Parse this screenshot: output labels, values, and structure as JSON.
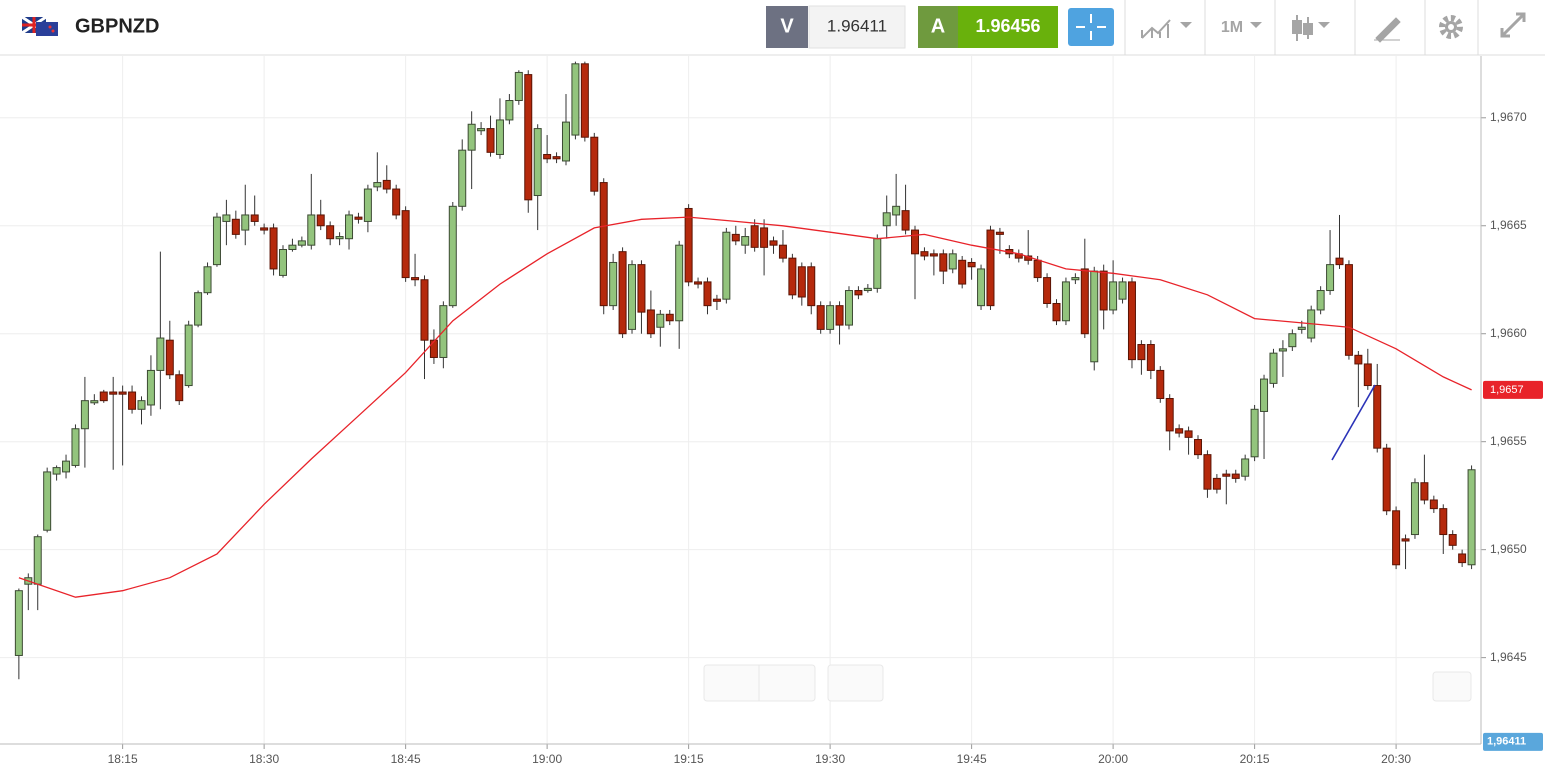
{
  "toolbar": {
    "symbol": "GBPNZD",
    "sell_label": "V",
    "sell": 1.96411,
    "buy_label": "A",
    "buy": 1.96456,
    "timeframe": "1M"
  },
  "chart_data": {
    "type": "candlestick",
    "x": [
      "18:04",
      "18:05",
      "18:06",
      "18:07",
      "18:08",
      "18:09",
      "18:10",
      "18:11",
      "18:12",
      "18:13",
      "18:14",
      "18:15",
      "18:16",
      "18:17",
      "18:18",
      "18:19",
      "18:20",
      "18:21",
      "18:22",
      "18:23",
      "18:24",
      "18:25",
      "18:26",
      "18:27",
      "18:28",
      "18:29",
      "18:30",
      "18:31",
      "18:32",
      "18:33",
      "18:34",
      "18:35",
      "18:36",
      "18:37",
      "18:38",
      "18:39",
      "18:40",
      "18:41",
      "18:42",
      "18:43",
      "18:44",
      "18:45",
      "18:46",
      "18:47",
      "18:48",
      "18:49",
      "18:50",
      "18:51",
      "18:52",
      "18:53",
      "18:54",
      "18:55",
      "18:56",
      "18:57",
      "18:58",
      "18:59",
      "19:00",
      "19:01",
      "19:02",
      "19:03",
      "19:04",
      "19:05",
      "19:06",
      "19:07",
      "19:08",
      "19:09",
      "19:10",
      "19:11",
      "19:12",
      "19:13",
      "19:14",
      "19:15",
      "19:16",
      "19:17",
      "19:18",
      "19:19",
      "19:20",
      "19:21",
      "19:22",
      "19:23",
      "19:24",
      "19:25",
      "19:26",
      "19:27",
      "19:28",
      "19:29",
      "19:30",
      "19:31",
      "19:32",
      "19:33",
      "19:34",
      "19:35",
      "19:36",
      "19:37",
      "19:38",
      "19:39",
      "19:40",
      "19:41",
      "19:42",
      "19:43",
      "19:44",
      "19:45",
      "19:46",
      "19:47",
      "19:48",
      "19:49",
      "19:50",
      "19:51",
      "19:52",
      "19:53",
      "19:54",
      "19:55",
      "19:56",
      "19:57",
      "19:58",
      "19:59",
      "20:00",
      "20:01",
      "20:02",
      "20:03",
      "20:04",
      "20:05",
      "20:06",
      "20:07",
      "20:08",
      "20:09",
      "20:10",
      "20:11",
      "20:12",
      "20:13",
      "20:14",
      "20:15",
      "20:16",
      "20:17",
      "20:18",
      "20:19",
      "20:20",
      "20:21",
      "20:22",
      "20:23",
      "20:24",
      "20:25",
      "20:26",
      "20:27",
      "20:28",
      "20:29",
      "20:30",
      "20:31",
      "20:32",
      "20:33",
      "20:34",
      "20:35",
      "20:36",
      "20:37",
      "20:38"
    ],
    "open": [
      1.96451,
      1.96484,
      1.96484,
      1.96509,
      1.96535,
      1.96536,
      1.96539,
      1.96556,
      1.96568,
      1.96573,
      1.96573,
      1.96573,
      1.96573,
      1.96565,
      1.96567,
      1.96583,
      1.96597,
      1.96581,
      1.96576,
      1.96604,
      1.96619,
      1.96632,
      1.96652,
      1.96653,
      1.96648,
      1.96655,
      1.96649,
      1.96649,
      1.96627,
      1.96639,
      1.96641,
      1.96641,
      1.96655,
      1.9665,
      1.96644,
      1.96644,
      1.96654,
      1.96652,
      1.96668,
      1.96671,
      1.96667,
      1.96657,
      1.96626,
      1.96625,
      1.96597,
      1.96589,
      1.96613,
      1.96659,
      1.96685,
      1.96694,
      1.96695,
      1.96683,
      1.96699,
      1.96708,
      1.9672,
      1.96664,
      1.96683,
      1.96682,
      1.9668,
      1.96692,
      1.96725,
      1.96691,
      1.9667,
      1.96613,
      1.96638,
      1.96602,
      1.96632,
      1.96611,
      1.96603,
      1.96609,
      1.96606,
      1.96658,
      1.96624,
      1.96624,
      1.96616,
      1.96616,
      1.96646,
      1.96641,
      1.9665,
      1.96649,
      1.96643,
      1.96641,
      1.96635,
      1.96631,
      1.96631,
      1.96613,
      1.96602,
      1.96613,
      1.96604,
      1.9662,
      1.9662,
      1.96621,
      1.9665,
      1.96655,
      1.96657,
      1.96648,
      1.96638,
      1.96637,
      1.96637,
      1.9663,
      1.96634,
      1.96633,
      1.96613,
      1.96648,
      1.96647,
      1.96639,
      1.96637,
      1.96636,
      1.96634,
      1.96626,
      1.96614,
      1.96606,
      1.96625,
      1.9663,
      1.96587,
      1.96629,
      1.96611,
      1.96616,
      1.96624,
      1.96595,
      1.96595,
      1.96583,
      1.9657,
      1.96556,
      1.96555,
      1.96551,
      1.96544,
      1.96533,
      1.96535,
      1.96535,
      1.96534,
      1.96543,
      1.96564,
      1.96577,
      1.96592,
      1.96594,
      1.96602,
      1.96598,
      1.96611,
      1.9662,
      1.96635,
      1.96632,
      1.9659,
      1.96586,
      1.96576,
      1.96547,
      1.96518,
      1.96505,
      1.96507,
      1.96531,
      1.96523,
      1.96519,
      1.96507,
      1.96498,
      1.96493
    ],
    "high": [
      1.96482,
      1.96489,
      1.96507,
      1.96538,
      1.96539,
      1.96544,
      1.96558,
      1.9658,
      1.96572,
      1.96574,
      1.9658,
      1.96576,
      1.96576,
      1.96571,
      1.9659,
      1.96638,
      1.96606,
      1.96583,
      1.96606,
      1.9662,
      1.96633,
      1.96656,
      1.96662,
      1.96657,
      1.96669,
      1.96664,
      1.96651,
      1.96651,
      1.96641,
      1.96644,
      1.96645,
      1.96674,
      1.96662,
      1.96652,
      1.96647,
      1.96657,
      1.96656,
      1.96669,
      1.96684,
      1.96678,
      1.96669,
      1.96659,
      1.96637,
      1.96627,
      1.96602,
      1.96615,
      1.96661,
      1.9669,
      1.96703,
      1.96698,
      1.96701,
      1.96709,
      1.96711,
      1.96722,
      1.96722,
      1.96697,
      1.96692,
      1.96684,
      1.96711,
      1.96726,
      1.96726,
      1.96693,
      1.96672,
      1.96637,
      1.9664,
      1.96634,
      1.96634,
      1.9662,
      1.96611,
      1.96611,
      1.96643,
      1.9666,
      1.96626,
      1.96626,
      1.96618,
      1.96649,
      1.9665,
      1.96649,
      1.96653,
      1.96653,
      1.96645,
      1.96648,
      1.96637,
      1.96633,
      1.96633,
      1.96615,
      1.96615,
      1.96615,
      1.96622,
      1.96622,
      1.96623,
      1.96646,
      1.96664,
      1.96674,
      1.96669,
      1.9665,
      1.9664,
      1.96639,
      1.96639,
      1.96639,
      1.96636,
      1.96635,
      1.96632,
      1.9665,
      1.96649,
      1.96641,
      1.96639,
      1.96648,
      1.96636,
      1.96628,
      1.96616,
      1.96626,
      1.96628,
      1.96644,
      1.96631,
      1.96632,
      1.96634,
      1.96626,
      1.96626,
      1.96597,
      1.96597,
      1.96585,
      1.96572,
      1.96558,
      1.96557,
      1.96553,
      1.96546,
      1.96535,
      1.96537,
      1.96537,
      1.96544,
      1.96567,
      1.96581,
      1.96593,
      1.96597,
      1.96602,
      1.96606,
      1.96613,
      1.96622,
      1.96648,
      1.96655,
      1.96634,
      1.96592,
      1.96593,
      1.96586,
      1.96549,
      1.9652,
      1.96507,
      1.96533,
      1.96544,
      1.96525,
      1.96521,
      1.96509,
      1.965,
      1.96539
    ],
    "low": [
      1.9644,
      1.96472,
      1.96472,
      1.96508,
      1.96532,
      1.96533,
      1.96538,
      1.96538,
      1.96567,
      1.96568,
      1.96537,
      1.96539,
      1.96563,
      1.96558,
      1.96562,
      1.96565,
      1.96579,
      1.96567,
      1.96575,
      1.96603,
      1.96618,
      1.96631,
      1.96641,
      1.96644,
      1.96641,
      1.9665,
      1.96646,
      1.96627,
      1.96626,
      1.96638,
      1.9664,
      1.96639,
      1.96648,
      1.96641,
      1.96641,
      1.96639,
      1.96651,
      1.96647,
      1.96666,
      1.96665,
      1.96653,
      1.96624,
      1.96622,
      1.96579,
      1.96586,
      1.96584,
      1.96612,
      1.96657,
      1.96667,
      1.96692,
      1.96682,
      1.96681,
      1.96697,
      1.96706,
      1.96656,
      1.96648,
      1.96679,
      1.96679,
      1.96678,
      1.9669,
      1.96689,
      1.96664,
      1.96609,
      1.96611,
      1.96598,
      1.966,
      1.966,
      1.96598,
      1.96594,
      1.96604,
      1.96593,
      1.96622,
      1.96621,
      1.96609,
      1.96611,
      1.96614,
      1.96641,
      1.96637,
      1.96638,
      1.96627,
      1.96637,
      1.96633,
      1.96616,
      1.96613,
      1.96609,
      1.966,
      1.966,
      1.96595,
      1.96602,
      1.96616,
      1.96619,
      1.96619,
      1.96644,
      1.9665,
      1.96646,
      1.96616,
      1.96634,
      1.96627,
      1.96623,
      1.96628,
      1.96621,
      1.96625,
      1.96611,
      1.96611,
      1.96637,
      1.96635,
      1.96633,
      1.96632,
      1.96624,
      1.96612,
      1.96604,
      1.96604,
      1.96623,
      1.96598,
      1.96583,
      1.96602,
      1.96609,
      1.96614,
      1.96584,
      1.96581,
      1.96579,
      1.96568,
      1.96546,
      1.96552,
      1.96544,
      1.96542,
      1.96524,
      1.96526,
      1.96521,
      1.96531,
      1.96532,
      1.96541,
      1.96542,
      1.96575,
      1.9658,
      1.96592,
      1.966,
      1.96596,
      1.96609,
      1.96618,
      1.9663,
      1.96588,
      1.96566,
      1.96574,
      1.96545,
      1.96516,
      1.96491,
      1.96491,
      1.96505,
      1.96521,
      1.96517,
      1.96498,
      1.965,
      1.96492,
      1.96491
    ],
    "close": [
      1.96481,
      1.96487,
      1.96506,
      1.96536,
      1.96538,
      1.96541,
      1.96556,
      1.96569,
      1.96569,
      1.96569,
      1.96572,
      1.96572,
      1.96565,
      1.96569,
      1.96583,
      1.96598,
      1.96581,
      1.96569,
      1.96604,
      1.96619,
      1.96631,
      1.96654,
      1.96655,
      1.96646,
      1.96655,
      1.96652,
      1.96648,
      1.9663,
      1.96639,
      1.96641,
      1.96643,
      1.96655,
      1.9665,
      1.96644,
      1.96645,
      1.96655,
      1.96653,
      1.96667,
      1.9667,
      1.96667,
      1.96655,
      1.96626,
      1.96625,
      1.96597,
      1.96589,
      1.96613,
      1.96659,
      1.96685,
      1.96697,
      1.96695,
      1.96684,
      1.96699,
      1.96708,
      1.96721,
      1.96662,
      1.96695,
      1.96681,
      1.96681,
      1.96698,
      1.96725,
      1.96691,
      1.96666,
      1.96613,
      1.96633,
      1.966,
      1.96632,
      1.9661,
      1.966,
      1.96609,
      1.96606,
      1.96641,
      1.96624,
      1.96623,
      1.96613,
      1.96615,
      1.96647,
      1.96643,
      1.96645,
      1.9664,
      1.9664,
      1.96641,
      1.96635,
      1.96618,
      1.96617,
      1.96613,
      1.96602,
      1.96613,
      1.96604,
      1.9662,
      1.96618,
      1.96621,
      1.96644,
      1.96656,
      1.96659,
      1.96648,
      1.96637,
      1.96636,
      1.96636,
      1.96629,
      1.96637,
      1.96623,
      1.96631,
      1.9663,
      1.96613,
      1.96646,
      1.96637,
      1.96635,
      1.96634,
      1.96626,
      1.96614,
      1.96606,
      1.96624,
      1.96626,
      1.966,
      1.96629,
      1.96611,
      1.96624,
      1.96624,
      1.96588,
      1.96588,
      1.96583,
      1.9657,
      1.96555,
      1.96554,
      1.96552,
      1.96544,
      1.96528,
      1.96528,
      1.96534,
      1.96533,
      1.96542,
      1.96565,
      1.96579,
      1.96591,
      1.96593,
      1.966,
      1.96603,
      1.96611,
      1.9662,
      1.96632,
      1.96632,
      1.9659,
      1.96586,
      1.96576,
      1.96547,
      1.96518,
      1.96493,
      1.96504,
      1.96531,
      1.96523,
      1.96519,
      1.96507,
      1.96502,
      1.96494,
      1.96537
    ],
    "up_color": "#93c47d",
    "down_color": "#b5290c",
    "ma": {
      "color": "#e8232a",
      "label": "1,9657",
      "x": [
        "18:04",
        "18:10",
        "18:15",
        "18:20",
        "18:25",
        "18:30",
        "18:35",
        "18:40",
        "18:45",
        "18:50",
        "18:55",
        "19:00",
        "19:05",
        "19:10",
        "19:15",
        "19:20",
        "19:25",
        "19:30",
        "19:35",
        "19:40",
        "19:45",
        "19:50",
        "19:55",
        "20:00",
        "20:05",
        "20:10",
        "20:15",
        "20:20",
        "20:25",
        "20:30",
        "20:35",
        "20:38"
      ],
      "values": [
        1.96487,
        1.96478,
        1.96481,
        1.96487,
        1.96498,
        1.96521,
        1.96542,
        1.96562,
        1.96582,
        1.96606,
        1.96623,
        1.96637,
        1.96649,
        1.96653,
        1.96654,
        1.96652,
        1.9665,
        1.96647,
        1.96644,
        1.96646,
        1.96641,
        1.96637,
        1.9663,
        1.96628,
        1.96625,
        1.96618,
        1.96607,
        1.96605,
        1.96603,
        1.96593,
        1.9658,
        1.96574
      ]
    },
    "price_line": {
      "value": 1.96411,
      "label": "1,96411"
    },
    "xlim": [
      "18:02",
      "20:39"
    ],
    "xticks": [
      "18:15",
      "18:30",
      "18:45",
      "19:00",
      "19:15",
      "19:30",
      "19:45",
      "20:00",
      "20:15",
      "20:30"
    ],
    "ylim": [
      1.9641,
      1.9673
    ],
    "yticks": [
      {
        "value": 1.9645,
        "label": "1,9645"
      },
      {
        "value": 1.965,
        "label": "1,9650"
      },
      {
        "value": 1.9655,
        "label": "1,9655"
      },
      {
        "value": 1.966,
        "label": "1,9660"
      },
      {
        "value": 1.9665,
        "label": "1,9665"
      },
      {
        "value": 1.967,
        "label": "1,9670"
      }
    ],
    "grid": true
  }
}
